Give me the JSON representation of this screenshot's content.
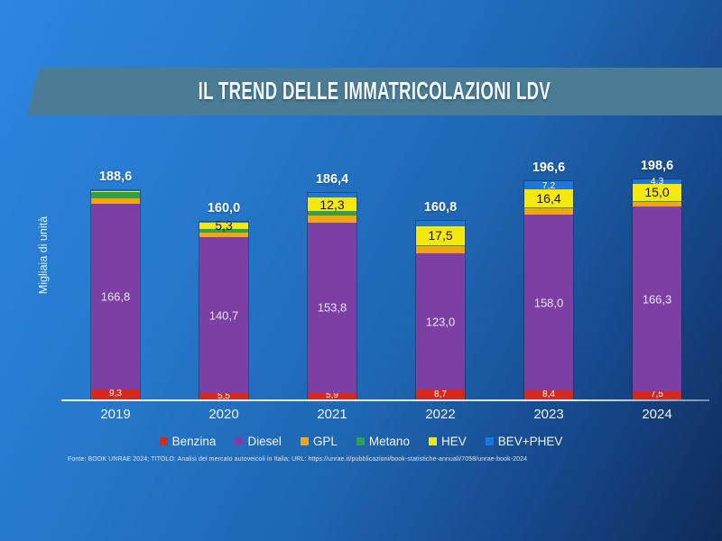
{
  "title": "IL TREND DELLE IMMATRICOLAZIONI LDV",
  "y_axis_label": "Migliaia di unità",
  "footer": "Fonte: BOOK UNRAE 2024; TITOLO: Analisi del mercato autoveicoli in Italia; URL: https://unrae.it/pubblicazioni/book-statistiche-annuali/7058/unrae-book-2024",
  "legend": [
    {
      "label": "Benzina",
      "color": "#d5291d"
    },
    {
      "label": "Diesel",
      "color": "#7c3fa4"
    },
    {
      "label": "GPL",
      "color": "#f4a609"
    },
    {
      "label": "Metano",
      "color": "#2fa14d"
    },
    {
      "label": "HEV",
      "color": "#f6e80d"
    },
    {
      "label": "BEV+PHEV",
      "color": "#1d76d9"
    }
  ],
  "chart_data": {
    "type": "bar",
    "stacked": true,
    "title": "IL TREND DELLE IMMATRICOLAZIONI LDV",
    "ylabel": "Migliaia di unità",
    "categories": [
      "2019",
      "2020",
      "2021",
      "2022",
      "2023",
      "2024"
    ],
    "totals": [
      188.6,
      160.0,
      186.4,
      160.8,
      196.6,
      198.6
    ],
    "total_labels": [
      "188,6",
      "160,0",
      "186,4",
      "160,8",
      "196,6",
      "198,6"
    ],
    "unlabeled_segment_values_estimated": true,
    "series": [
      {
        "name": "Benzina",
        "color": "#d5291d",
        "values": [
          9.3,
          5.5,
          5.9,
          8.7,
          8.4,
          7.5
        ],
        "labels": [
          "9,3",
          "5,5",
          "5,9",
          "8,7",
          "8,4",
          "7,5"
        ],
        "label_color": "#ffffff",
        "label_size": 10
      },
      {
        "name": "Diesel",
        "color": "#7c3fa4",
        "values": [
          166.8,
          140.7,
          153.8,
          123.0,
          158.0,
          166.3
        ],
        "labels": [
          "166,8",
          "140,7",
          "153,8",
          "123,0",
          "158,0",
          "166,3"
        ],
        "label_color": "#e9e6f2",
        "label_size": 13
      },
      {
        "name": "GPL",
        "color": "#f4a609",
        "values": [
          5.3,
          4.2,
          6.0,
          6.5,
          6.0,
          5.0
        ],
        "labels": [
          "",
          "",
          "",
          "",
          "",
          ""
        ],
        "label_color": "#111111",
        "label_size": 10
      },
      {
        "name": "Metano",
        "color": "#2fa14d",
        "values": [
          5.5,
          3.4,
          4.0,
          0.8,
          0.6,
          0.5
        ],
        "labels": [
          "",
          "",
          "",
          "",
          "",
          ""
        ],
        "label_color": "#111111",
        "label_size": 10
      },
      {
        "name": "HEV",
        "color": "#f6e80d",
        "values": [
          1.5,
          5.3,
          12.3,
          17.5,
          16.4,
          15.0
        ],
        "labels": [
          "",
          "5,3",
          "12,3",
          "17,5",
          "16,4",
          "15,0"
        ],
        "label_color": "#141414",
        "label_size": 14
      },
      {
        "name": "BEV+PHEV",
        "color": "#1d76d9",
        "values": [
          0.2,
          0.9,
          4.4,
          4.3,
          7.2,
          4.3
        ],
        "labels": [
          "",
          "",
          "",
          "",
          "7,2",
          "4,3"
        ],
        "label_color": "#ffffff",
        "label_size": 10.5
      }
    ]
  }
}
